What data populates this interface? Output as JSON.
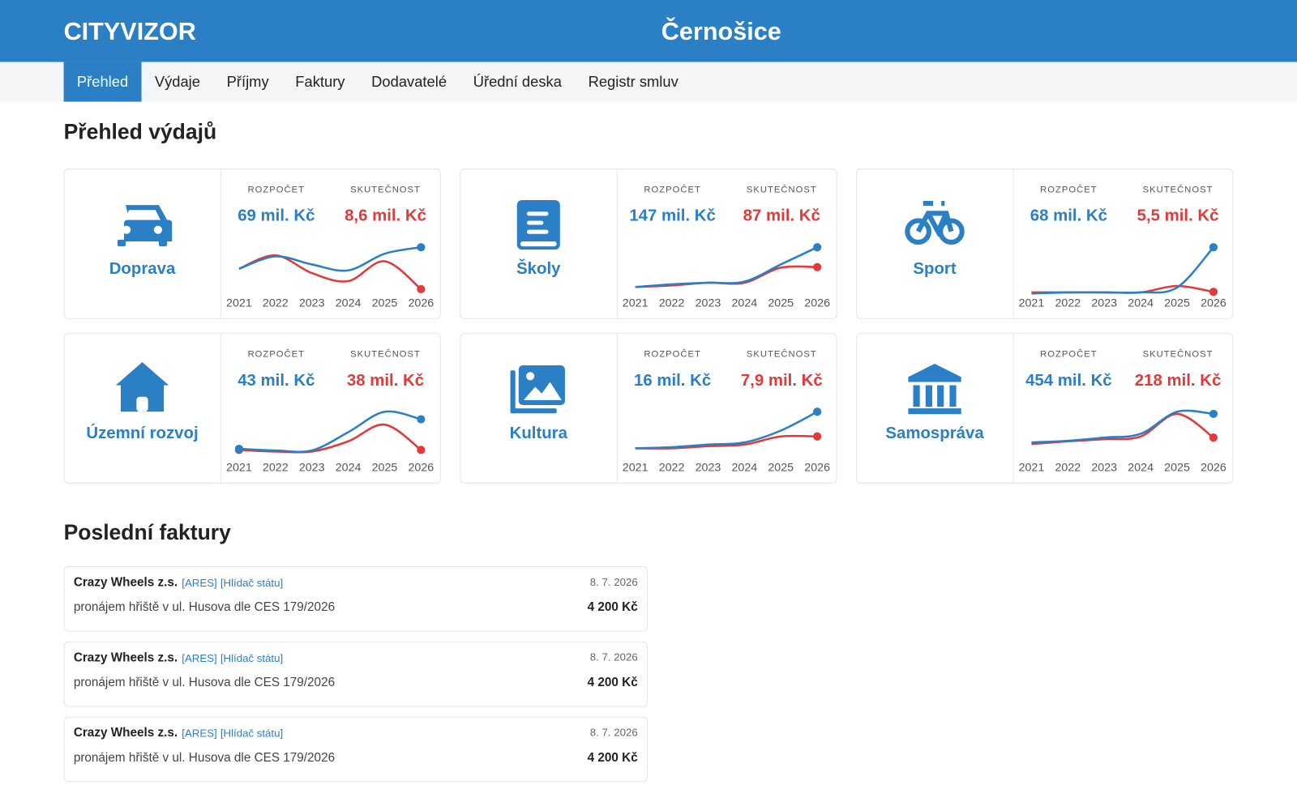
{
  "header": {
    "brand": "CITYVIZOR",
    "city": "Černošice"
  },
  "nav": {
    "items": [
      "Přehled",
      "Výdaje",
      "Příjmy",
      "Faktury",
      "Dodavatelé",
      "Úřední deska",
      "Registr smluv"
    ],
    "active": 0
  },
  "expenses": {
    "title": "Přehled výdajů",
    "budget_label": "ROZPOČET",
    "actual_label": "SKUTEČNOST",
    "colors": {
      "budget": "#2a7fc5",
      "actual": "#e03a3a"
    },
    "years": [
      2021,
      2022,
      2023,
      2024,
      2025,
      2026
    ],
    "cards": [
      {
        "name": "Doprava",
        "budget": "69 mil. Kč",
        "actual": "8,6 mil. Kč",
        "budget_series": [
          46,
          69,
          54,
          43,
          74,
          86
        ],
        "actual_series": [
          46,
          71,
          38,
          23,
          60,
          8
        ]
      },
      {
        "name": "Školy",
        "budget": "147 mil. Kč",
        "actual": "87 mil. Kč",
        "budget_series": [
          12,
          17,
          20,
          22,
          54,
          86
        ],
        "actual_series": [
          12,
          15,
          20,
          20,
          48,
          49
        ]
      },
      {
        "name": "Sport",
        "budget": "68 mil. Kč",
        "actual": "5,5 mil. Kč",
        "budget_series": [
          0,
          2,
          2,
          2,
          11,
          86
        ],
        "actual_series": [
          2,
          2,
          2,
          2,
          14,
          3
        ]
      },
      {
        "name": "Územní rozvoj",
        "budget": "43 mil. Kč",
        "actual": "38 mil. Kč",
        "budget_series": [
          17,
          14,
          14,
          48,
          86,
          72
        ],
        "actual_series": [
          15,
          12,
          12,
          31,
          62,
          15
        ]
      },
      {
        "name": "Kultura",
        "budget": "16 mil. Kč",
        "actual": "7,9 mil. Kč",
        "budget_series": [
          18,
          20,
          25,
          29,
          51,
          86
        ],
        "actual_series": [
          18,
          18,
          22,
          25,
          40,
          40
        ]
      },
      {
        "name": "Samospráva",
        "budget": "454 mil. Kč",
        "actual": "218 mil. Kč",
        "budget_series": [
          29,
          32,
          38,
          45,
          86,
          82
        ],
        "actual_series": [
          26,
          31,
          35,
          40,
          82,
          38
        ]
      }
    ]
  },
  "invoices": {
    "title": "Poslední faktury",
    "items": [
      {
        "supplier": "Crazy Wheels z.s.",
        "links": [
          "[ARES]",
          "[Hlídač státu]"
        ],
        "date": "8. 7. 2026",
        "description": "pronájem hřiště v ul. Husova dle CES 179/2026",
        "amount": "4 200 Kč"
      },
      {
        "supplier": "Crazy Wheels z.s.",
        "links": [
          "[ARES]",
          "[Hlídač státu]"
        ],
        "date": "8. 7. 2026",
        "description": "pronájem hřiště v ul. Husova dle CES 179/2026",
        "amount": "4 200 Kč"
      },
      {
        "supplier": "Crazy Wheels z.s.",
        "links": [
          "[ARES]",
          "[Hlídač státu]"
        ],
        "date": "8. 7. 2026",
        "description": "pronájem hřiště v ul. Husova dle CES 179/2026",
        "amount": "4 200 Kč"
      }
    ]
  }
}
